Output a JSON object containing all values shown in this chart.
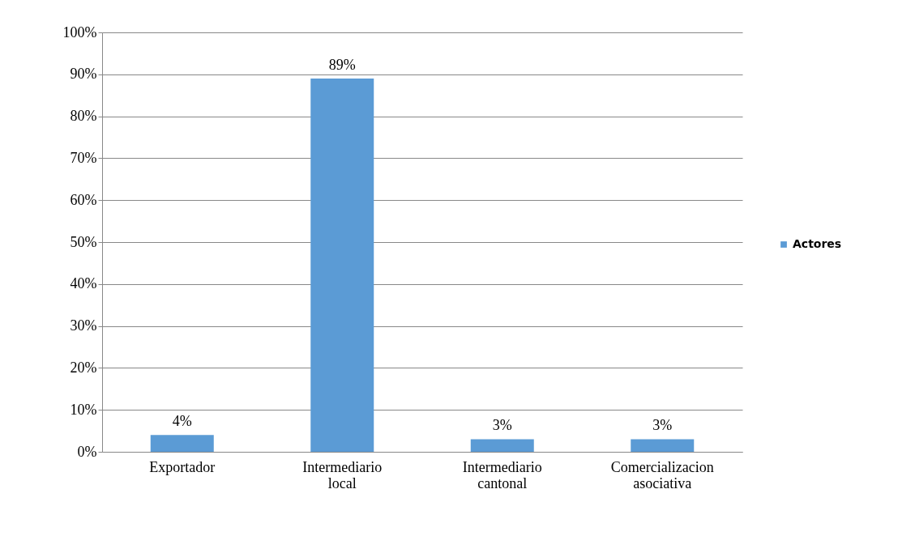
{
  "chart_data": {
    "type": "bar",
    "categories": [
      "Exportador",
      "Intermediario local",
      "Intermediario cantonal",
      "Comercializacion asociativa"
    ],
    "series": [
      {
        "name": "Actores",
        "color": "#5b9bd5",
        "values": [
          4,
          89,
          3,
          3
        ],
        "value_labels": [
          "4%",
          "89%",
          "3%",
          "3%"
        ]
      }
    ],
    "ylim": [
      0,
      100
    ],
    "yticks": [
      {
        "value": 0,
        "label": "0%"
      },
      {
        "value": 10,
        "label": "10%"
      },
      {
        "value": 20,
        "label": "20%"
      },
      {
        "value": 30,
        "label": "30%"
      },
      {
        "value": 40,
        "label": "40%"
      },
      {
        "value": 50,
        "label": "50%"
      },
      {
        "value": 60,
        "label": "60%"
      },
      {
        "value": 70,
        "label": "70%"
      },
      {
        "value": 80,
        "label": "80%"
      },
      {
        "value": 90,
        "label": "90%"
      },
      {
        "value": 100,
        "label": "100%"
      }
    ],
    "grid": "y",
    "legend": "right"
  }
}
